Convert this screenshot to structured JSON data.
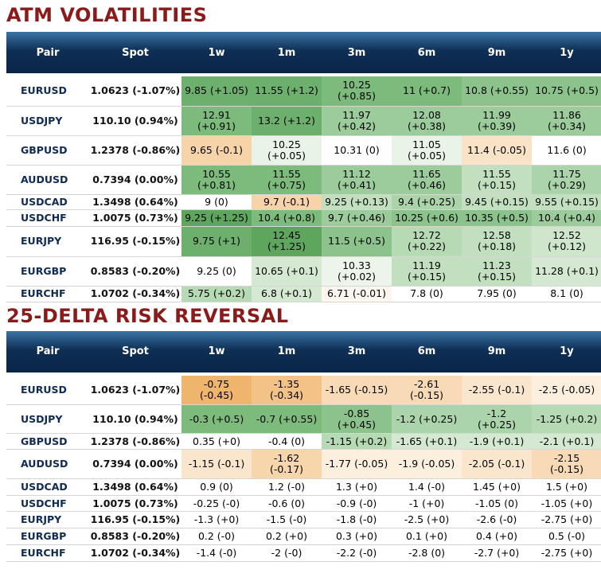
{
  "atm": {
    "title": "ATM VOLATILITIES",
    "headers": [
      "Pair",
      "Spot",
      "1w",
      "1m",
      "3m",
      "6m",
      "9m",
      "1y"
    ],
    "rows": [
      {
        "pair": "EURUSD",
        "spot": "1.0623 (-1.07%)",
        "cells": [
          {
            "l1": "9.85 (+1.05)",
            "l2": "",
            "bg": "#6db06d"
          },
          {
            "l1": "11.55 (+1.2)",
            "l2": "",
            "bg": "#6db06d"
          },
          {
            "l1": "10.25",
            "l2": "(+0.85)",
            "bg": "#7cbb7c"
          },
          {
            "l1": "11 (+0.7)",
            "l2": "",
            "bg": "#7cbb7c"
          },
          {
            "l1": "10.8 (+0.55)",
            "l2": "",
            "bg": "#8cc38c"
          },
          {
            "l1": "10.75 (+0.5)",
            "l2": "",
            "bg": "#8cc38c"
          }
        ]
      },
      {
        "pair": "USDJPY",
        "spot": "110.10 (0.94%)",
        "cells": [
          {
            "l1": "12.91",
            "l2": "(+0.91)",
            "bg": "#7cbb7c"
          },
          {
            "l1": "13.2 (+1.2)",
            "l2": "",
            "bg": "#6db06d"
          },
          {
            "l1": "11.97",
            "l2": "(+0.42)",
            "bg": "#9ccb9c"
          },
          {
            "l1": "12.08",
            "l2": "(+0.38)",
            "bg": "#9ccb9c"
          },
          {
            "l1": "11.99",
            "l2": "(+0.39)",
            "bg": "#9ccb9c"
          },
          {
            "l1": "11.86",
            "l2": "(+0.34)",
            "bg": "#9ccb9c"
          }
        ]
      },
      {
        "pair": "GBPUSD",
        "spot": "1.2378 (-0.86%)",
        "cells": [
          {
            "l1": "9.65 (-0.1)",
            "l2": "",
            "bg": "#f6d3a8"
          },
          {
            "l1": "10.25",
            "l2": "(+0.05)",
            "bg": "#e9f3e7"
          },
          {
            "l1": "10.31 (0)",
            "l2": "",
            "bg": "#ffffff"
          },
          {
            "l1": "11.05",
            "l2": "(+0.05)",
            "bg": "#e9f3e7"
          },
          {
            "l1": "11.4 (-0.05)",
            "l2": "",
            "bg": "#f9e3c6"
          },
          {
            "l1": "11.6 (0)",
            "l2": "",
            "bg": "#ffffff"
          }
        ]
      },
      {
        "pair": "AUDUSD",
        "spot": "0.7394 (0.00%)",
        "cells": [
          {
            "l1": "10.55",
            "l2": "(+0.81)",
            "bg": "#7cbb7c"
          },
          {
            "l1": "11.55",
            "l2": "(+0.75)",
            "bg": "#7cbb7c"
          },
          {
            "l1": "11.12",
            "l2": "(+0.41)",
            "bg": "#9ccb9c"
          },
          {
            "l1": "11.65",
            "l2": "(+0.46)",
            "bg": "#9ccb9c"
          },
          {
            "l1": "11.55",
            "l2": "(+0.15)",
            "bg": "#c2e0bf"
          },
          {
            "l1": "11.75",
            "l2": "(+0.29)",
            "bg": "#acd4aa"
          }
        ]
      },
      {
        "pair": "USDCAD",
        "spot": "1.3498 (0.64%)",
        "cells": [
          {
            "l1": "9 (0)",
            "l2": "",
            "bg": "#ffffff"
          },
          {
            "l1": "9.7 (-0.1)",
            "l2": "",
            "bg": "#f6d3a8"
          },
          {
            "l1": "9.25 (+0.13)",
            "l2": "",
            "bg": "#c2e0bf"
          },
          {
            "l1": "9.4 (+0.25)",
            "l2": "",
            "bg": "#acd4aa"
          },
          {
            "l1": "9.45 (+0.15)",
            "l2": "",
            "bg": "#c2e0bf"
          },
          {
            "l1": "9.55 (+0.15)",
            "l2": "",
            "bg": "#c2e0bf"
          }
        ]
      },
      {
        "pair": "USDCHF",
        "spot": "1.0075 (0.73%)",
        "cells": [
          {
            "l1": "9.25 (+1.25)",
            "l2": "",
            "bg": "#5ea65e"
          },
          {
            "l1": "10.4 (+0.8)",
            "l2": "",
            "bg": "#7cbb7c"
          },
          {
            "l1": "9.7 (+0.46)",
            "l2": "",
            "bg": "#9ccb9c"
          },
          {
            "l1": "10.25 (+0.6)",
            "l2": "",
            "bg": "#8cc38c"
          },
          {
            "l1": "10.35 (+0.5)",
            "l2": "",
            "bg": "#8cc38c"
          },
          {
            "l1": "10.4 (+0.4)",
            "l2": "",
            "bg": "#9ccb9c"
          }
        ]
      },
      {
        "pair": "EURJPY",
        "spot": "116.95 (-0.15%)",
        "cells": [
          {
            "l1": "9.75 (+1)",
            "l2": "",
            "bg": "#6db06d"
          },
          {
            "l1": "12.45",
            "l2": "(+1.25)",
            "bg": "#5ea65e"
          },
          {
            "l1": "11.5 (+0.5)",
            "l2": "",
            "bg": "#8cc38c"
          },
          {
            "l1": "12.72",
            "l2": "(+0.22)",
            "bg": "#b6dab3"
          },
          {
            "l1": "12.58",
            "l2": "(+0.18)",
            "bg": "#c2e0bf"
          },
          {
            "l1": "12.52",
            "l2": "(+0.12)",
            "bg": "#cfe6cc"
          }
        ]
      },
      {
        "pair": "EURGBP",
        "spot": "0.8583 (-0.20%)",
        "cells": [
          {
            "l1": "9.25 (0)",
            "l2": "",
            "bg": "#ffffff"
          },
          {
            "l1": "10.65 (+0.1)",
            "l2": "",
            "bg": "#d5e9d2"
          },
          {
            "l1": "10.33",
            "l2": "(+0.02)",
            "bg": "#edf5eb"
          },
          {
            "l1": "11.19",
            "l2": "(+0.15)",
            "bg": "#c2e0bf"
          },
          {
            "l1": "11.23",
            "l2": "(+0.15)",
            "bg": "#c2e0bf"
          },
          {
            "l1": "11.28 (+0.1)",
            "l2": "",
            "bg": "#d5e9d2"
          }
        ]
      },
      {
        "pair": "EURCHF",
        "spot": "1.0702 (-0.34%)",
        "cells": [
          {
            "l1": "5.75 (+0.2)",
            "l2": "",
            "bg": "#b6dab3"
          },
          {
            "l1": "6.8 (+0.1)",
            "l2": "",
            "bg": "#d5e9d2"
          },
          {
            "l1": "6.71 (-0.01)",
            "l2": "",
            "bg": "#fdf6ee"
          },
          {
            "l1": "7.8 (0)",
            "l2": "",
            "bg": "#ffffff"
          },
          {
            "l1": "7.95 (0)",
            "l2": "",
            "bg": "#ffffff"
          },
          {
            "l1": "8.1 (0)",
            "l2": "",
            "bg": "#ffffff"
          }
        ]
      }
    ]
  },
  "rr": {
    "title": "25-DELTA RISK REVERSAL",
    "headers": [
      "Pair",
      "Spot",
      "1w",
      "1m",
      "3m",
      "6m",
      "9m",
      "1y"
    ],
    "rows": [
      {
        "pair": "EURUSD",
        "spot": "1.0623 (-1.07%)",
        "cells": [
          {
            "l1": "-0.75",
            "l2": "(-0.45)",
            "bg": "#efb56d"
          },
          {
            "l1": "-1.35",
            "l2": "(-0.34)",
            "bg": "#f2c286"
          },
          {
            "l1": "-1.65 (-0.15)",
            "l2": "",
            "bg": "#f8dbb6"
          },
          {
            "l1": "-2.61",
            "l2": "(-0.15)",
            "bg": "#f8dbb6"
          },
          {
            "l1": "-2.55 (-0.1)",
            "l2": "",
            "bg": "#fae6cc"
          },
          {
            "l1": "-2.5 (-0.05)",
            "l2": "",
            "bg": "#fcefde"
          }
        ]
      },
      {
        "pair": "USDJPY",
        "spot": "110.10 (0.94%)",
        "cells": [
          {
            "l1": "-0.3 (+0.5)",
            "l2": "",
            "bg": "#7cbb7c"
          },
          {
            "l1": "-0.7 (+0.55)",
            "l2": "",
            "bg": "#7cbb7c"
          },
          {
            "l1": "-0.85",
            "l2": "(+0.45)",
            "bg": "#8cc38c"
          },
          {
            "l1": "-1.2 (+0.25)",
            "l2": "",
            "bg": "#acd4aa"
          },
          {
            "l1": "-1.2",
            "l2": "(+0.25)",
            "bg": "#acd4aa"
          },
          {
            "l1": "-1.25 (+0.2)",
            "l2": "",
            "bg": "#b6dab3"
          }
        ]
      },
      {
        "pair": "GBPUSD",
        "spot": "1.2378 (-0.86%)",
        "cells": [
          {
            "l1": "0.35 (+0)",
            "l2": "",
            "bg": "#ffffff"
          },
          {
            "l1": "-0.4 (0)",
            "l2": "",
            "bg": "#ffffff"
          },
          {
            "l1": "-1.15 (+0.2)",
            "l2": "",
            "bg": "#b6dab3"
          },
          {
            "l1": "-1.65 (+0.1)",
            "l2": "",
            "bg": "#d5e9d2"
          },
          {
            "l1": "-1.9 (+0.1)",
            "l2": "",
            "bg": "#d5e9d2"
          },
          {
            "l1": "-2.1 (+0.1)",
            "l2": "",
            "bg": "#d5e9d2"
          }
        ]
      },
      {
        "pair": "AUDUSD",
        "spot": "0.7394 (0.00%)",
        "cells": [
          {
            "l1": "-1.15 (-0.1)",
            "l2": "",
            "bg": "#fae6cc"
          },
          {
            "l1": "-1.62",
            "l2": "(-0.17)",
            "bg": "#f7d6ac"
          },
          {
            "l1": "-1.77 (-0.05)",
            "l2": "",
            "bg": "#fcefde"
          },
          {
            "l1": "-1.9 (-0.05)",
            "l2": "",
            "bg": "#fcefde"
          },
          {
            "l1": "-2.05 (-0.1)",
            "l2": "",
            "bg": "#fae6cc"
          },
          {
            "l1": "-2.15",
            "l2": "(-0.15)",
            "bg": "#f8dbb6"
          }
        ]
      },
      {
        "pair": "USDCAD",
        "spot": "1.3498 (0.64%)",
        "cells": [
          {
            "l1": "0.9 (0)",
            "l2": "",
            "bg": "#ffffff"
          },
          {
            "l1": "1.2 (-0)",
            "l2": "",
            "bg": "#ffffff"
          },
          {
            "l1": "1.3 (+0)",
            "l2": "",
            "bg": "#ffffff"
          },
          {
            "l1": "1.4 (-0)",
            "l2": "",
            "bg": "#ffffff"
          },
          {
            "l1": "1.45 (+0)",
            "l2": "",
            "bg": "#ffffff"
          },
          {
            "l1": "1.5 (+0)",
            "l2": "",
            "bg": "#ffffff"
          }
        ]
      },
      {
        "pair": "USDCHF",
        "spot": "1.0075 (0.73%)",
        "cells": [
          {
            "l1": "-0.25 (-0)",
            "l2": "",
            "bg": "#ffffff"
          },
          {
            "l1": "-0.6 (0)",
            "l2": "",
            "bg": "#ffffff"
          },
          {
            "l1": "-0.9 (-0)",
            "l2": "",
            "bg": "#ffffff"
          },
          {
            "l1": "-1 (+0)",
            "l2": "",
            "bg": "#ffffff"
          },
          {
            "l1": "-1.05 (0)",
            "l2": "",
            "bg": "#ffffff"
          },
          {
            "l1": "-1.05 (+0)",
            "l2": "",
            "bg": "#ffffff"
          }
        ]
      },
      {
        "pair": "EURJPY",
        "spot": "116.95 (-0.15%)",
        "cells": [
          {
            "l1": "-1.3 (+0)",
            "l2": "",
            "bg": "#ffffff"
          },
          {
            "l1": "-1.5 (-0)",
            "l2": "",
            "bg": "#ffffff"
          },
          {
            "l1": "-1.8 (-0)",
            "l2": "",
            "bg": "#ffffff"
          },
          {
            "l1": "-2.5 (+0)",
            "l2": "",
            "bg": "#ffffff"
          },
          {
            "l1": "-2.6 (-0)",
            "l2": "",
            "bg": "#ffffff"
          },
          {
            "l1": "-2.75 (+0)",
            "l2": "",
            "bg": "#ffffff"
          }
        ]
      },
      {
        "pair": "EURGBP",
        "spot": "0.8583 (-0.20%)",
        "cells": [
          {
            "l1": "0.2 (-0)",
            "l2": "",
            "bg": "#ffffff"
          },
          {
            "l1": "0.2 (+0)",
            "l2": "",
            "bg": "#ffffff"
          },
          {
            "l1": "0.3 (+0)",
            "l2": "",
            "bg": "#ffffff"
          },
          {
            "l1": "0.1 (+0)",
            "l2": "",
            "bg": "#ffffff"
          },
          {
            "l1": "0.4 (+0)",
            "l2": "",
            "bg": "#ffffff"
          },
          {
            "l1": "0.5 (-0)",
            "l2": "",
            "bg": "#ffffff"
          }
        ]
      },
      {
        "pair": "EURCHF",
        "spot": "1.0702 (-0.34%)",
        "cells": [
          {
            "l1": "-1.4 (-0)",
            "l2": "",
            "bg": "#ffffff"
          },
          {
            "l1": "-2 (-0)",
            "l2": "",
            "bg": "#ffffff"
          },
          {
            "l1": "-2.2 (-0)",
            "l2": "",
            "bg": "#ffffff"
          },
          {
            "l1": "-2.8 (0)",
            "l2": "",
            "bg": "#ffffff"
          },
          {
            "l1": "-2.7 (+0)",
            "l2": "",
            "bg": "#ffffff"
          },
          {
            "l1": "-2.75 (+0)",
            "l2": "",
            "bg": "#ffffff"
          }
        ]
      }
    ]
  }
}
